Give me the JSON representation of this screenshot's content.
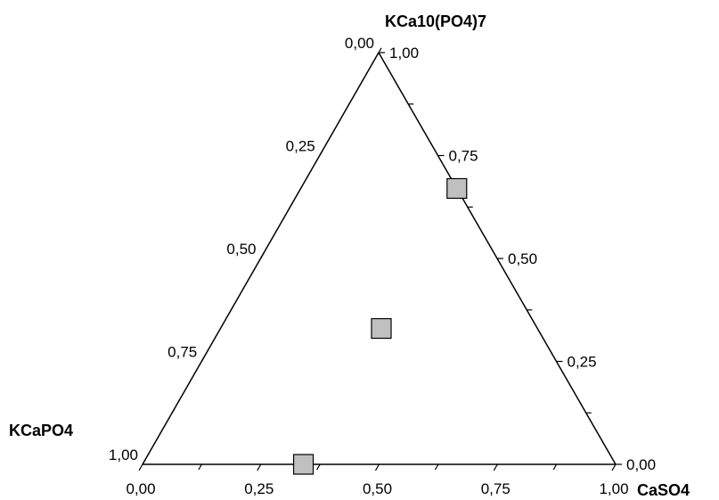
{
  "chart_data": {
    "type": "scatter",
    "subtype": "ternary",
    "title": "",
    "vertices": {
      "top": "KCa10(PO4)7",
      "left": "KCaPO4",
      "right": "CaSO4"
    },
    "axes": {
      "bottom": {
        "ticks": [
          "0,00",
          "0,25",
          "0,50",
          "0,75",
          "1,00"
        ]
      },
      "left": {
        "ticks": [
          "0,00",
          "0,25",
          "0,50",
          "0,75",
          "1,00"
        ]
      },
      "right": {
        "ticks": [
          "0,00",
          "0,25",
          "0,50",
          "0,75",
          "1,00"
        ]
      }
    },
    "range": [
      0,
      1
    ],
    "minor_tick_step": 0.125,
    "grid": false,
    "marker": {
      "shape": "square",
      "fill": "#c0c0c0",
      "stroke": "#000000"
    },
    "points": [
      {
        "KCa10(PO4)7": 0.67,
        "KCaPO4": 0.0,
        "CaSO4": 0.33
      },
      {
        "KCa10(PO4)7": 0.33,
        "KCaPO4": 0.33,
        "CaSO4": 0.34
      },
      {
        "KCa10(PO4)7": 0.0,
        "KCaPO4": 0.66,
        "CaSO4": 0.34
      }
    ]
  }
}
